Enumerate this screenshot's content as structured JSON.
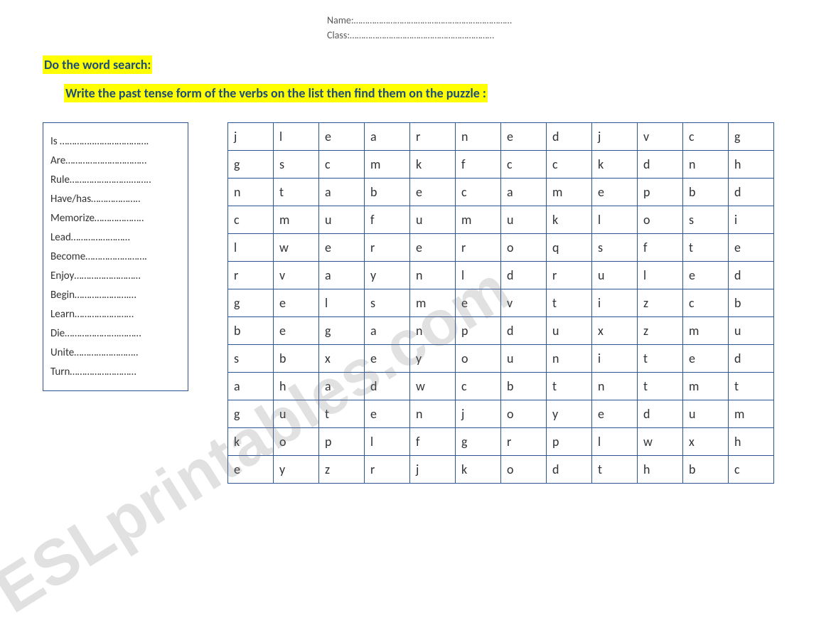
{
  "header": {
    "name_label": "Name:",
    "name_dots": "……………………………………………………………",
    "class_label": "Class:",
    "class_dots": "………………………………………………………"
  },
  "titles": {
    "line1": "Do the word search:",
    "line2": "Write the past tense form of the verbs on the list then find them on the puzzle :"
  },
  "verbs": [
    {
      "name": "Is ",
      "dots": "…………..…………………."
    },
    {
      "name": "Are",
      "dots": "……………………………"
    },
    {
      "name": "Rule",
      "dots": "…………………….…….."
    },
    {
      "name": "Have/has",
      "dots": "……………….."
    },
    {
      "name": "Memorize",
      "dots": "……………….."
    },
    {
      "name": "Lead",
      "dots": "……………………"
    },
    {
      "name": "Become",
      "dots": "……………………."
    },
    {
      "name": "Enjoy",
      "dots": "………………………"
    },
    {
      "name": "Begin",
      "dots": "………………….…"
    },
    {
      "name": "Learn",
      "dots": "……………………"
    },
    {
      "name": "Die",
      "dots": "………………….………"
    },
    {
      "name": "Unite",
      "dots": "…………………….."
    },
    {
      "name": "Turn",
      "dots": "………………………"
    }
  ],
  "grid": {
    "cols": 12,
    "rows": [
      [
        "j",
        "l",
        "e",
        "a",
        "r",
        "n",
        "e",
        "d",
        "j",
        "v",
        "c",
        "g"
      ],
      [
        "g",
        "s",
        "c",
        "m",
        "k",
        "f",
        "c",
        "c",
        "k",
        "d",
        "n",
        "h"
      ],
      [
        "n",
        "t",
        "a",
        "b",
        "e",
        "c",
        "a",
        "m",
        "e",
        "p",
        "b",
        "d"
      ],
      [
        "c",
        "m",
        "u",
        "f",
        "u",
        "m",
        "u",
        "k",
        "l",
        "o",
        "s",
        "i"
      ],
      [
        "l",
        "w",
        "e",
        "r",
        "e",
        "r",
        "o",
        "q",
        "s",
        "f",
        "t",
        "e"
      ],
      [
        "r",
        "v",
        "a",
        "y",
        "n",
        "l",
        "d",
        "r",
        "u",
        "l",
        "e",
        "d"
      ],
      [
        "g",
        "e",
        "l",
        "s",
        "m",
        "e",
        "v",
        "t",
        "i",
        "z",
        "c",
        "b"
      ],
      [
        "b",
        "e",
        "g",
        "a",
        "n",
        "p",
        "d",
        "u",
        "x",
        "z",
        "m",
        "u"
      ],
      [
        "s",
        "b",
        "x",
        "e",
        "y",
        "o",
        "u",
        "n",
        "i",
        "t",
        "e",
        "d"
      ],
      [
        "a",
        "h",
        "a",
        "d",
        "w",
        "c",
        "b",
        "t",
        "n",
        "t",
        "m",
        "t"
      ],
      [
        "g",
        "u",
        "t",
        "e",
        "n",
        "j",
        "o",
        "y",
        "e",
        "d",
        "u",
        "m"
      ],
      [
        "k",
        "o",
        "p",
        "l",
        "f",
        "g",
        "r",
        "p",
        "l",
        "w",
        "x",
        "h"
      ],
      [
        "e",
        "y",
        "z",
        "r",
        "j",
        "k",
        "o",
        "d",
        "t",
        "h",
        "b",
        "c"
      ]
    ]
  },
  "watermark": "ESLprintables.com",
  "styles": {
    "highlight_bg": "#ffff00",
    "heading_color": "#1f4e79",
    "border_color": "#2f5496",
    "cell_text_color": "#323232",
    "body_text_color": "#333333"
  }
}
